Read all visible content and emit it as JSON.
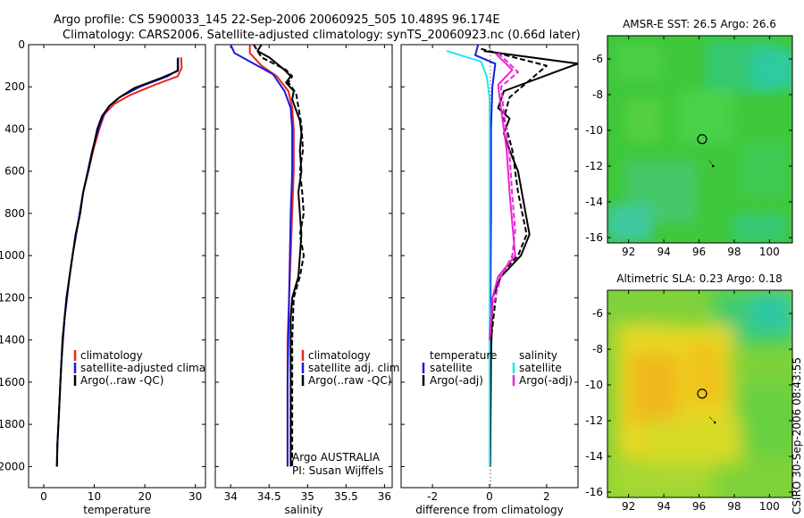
{
  "header": {
    "line1": "Argo profile: CS 5900033_145 22-Sep-2006 20060925_505 10.489S 96.174E",
    "line2": "Climatology: CARS2006. Satellite-adjusted climatology: synTS_20060923.nc (0.66d later)"
  },
  "credit": "CSIRO 30-Sep-2006 08:43:55",
  "colors": {
    "red": "#e8261e",
    "blue": "#1a1ae0",
    "black": "#000000",
    "cyan": "#22e6ee",
    "magenta": "#ee22d8"
  },
  "chart_data": [
    {
      "type": "line",
      "title": "",
      "xlabel": "temperature",
      "ylabel": "",
      "xlim": [
        -3,
        32
      ],
      "ylim": [
        0,
        2100
      ],
      "y_reversed": true,
      "x_ticks": [
        0,
        10,
        20,
        30
      ],
      "y_ticks": [
        0,
        200,
        400,
        600,
        800,
        1000,
        1200,
        1400,
        1600,
        1800,
        2000
      ],
      "legend": [
        "climatology",
        "satellite-adjusted climatology",
        "Argo(..raw -QC)"
      ],
      "series": [
        {
          "name": "climatology",
          "color": "red",
          "dash": false,
          "points": [
            [
              27.2,
              60
            ],
            [
              27.3,
              110
            ],
            [
              26.5,
              150
            ],
            [
              22,
              190
            ],
            [
              17,
              240
            ],
            [
              14,
              280
            ],
            [
              12,
              330
            ],
            [
              11,
              400
            ],
            [
              9.8,
              500
            ],
            [
              8.8,
              600
            ],
            [
              7.8,
              700
            ],
            [
              7.2,
              800
            ],
            [
              6.4,
              900
            ],
            [
              5.7,
              1000
            ],
            [
              5.1,
              1100
            ],
            [
              4.6,
              1200
            ],
            [
              4.1,
              1300
            ],
            [
              3.8,
              1400
            ],
            [
              3.5,
              1500
            ],
            [
              3.3,
              1600
            ],
            [
              3.1,
              1700
            ],
            [
              2.9,
              1800
            ],
            [
              2.7,
              1900
            ],
            [
              2.6,
              2000
            ]
          ]
        },
        {
          "name": "satellite-adjusted climatology",
          "color": "blue",
          "dash": false,
          "points": [
            [
              26.6,
              60
            ],
            [
              26.6,
              120
            ],
            [
              24.5,
              150
            ],
            [
              19,
              200
            ],
            [
              15,
              250
            ],
            [
              13,
              290
            ],
            [
              11.7,
              340
            ],
            [
              10.8,
              400
            ],
            [
              9.6,
              500
            ],
            [
              8.7,
              600
            ],
            [
              7.8,
              700
            ],
            [
              7.1,
              800
            ],
            [
              6.4,
              900
            ],
            [
              5.7,
              1000
            ],
            [
              5.1,
              1100
            ],
            [
              4.6,
              1200
            ],
            [
              4.1,
              1300
            ],
            [
              3.8,
              1400
            ],
            [
              3.5,
              1500
            ],
            [
              3.3,
              1600
            ],
            [
              3.1,
              1700
            ],
            [
              2.9,
              1800
            ],
            [
              2.7,
              1900
            ],
            [
              2.6,
              2000
            ]
          ]
        },
        {
          "name": "Argo(..raw -QC)",
          "color": "black",
          "dash": false,
          "points": [
            [
              26.5,
              65
            ],
            [
              26.5,
              125
            ],
            [
              23,
              160
            ],
            [
              18,
              205
            ],
            [
              15,
              250
            ],
            [
              13,
              290
            ],
            [
              11.5,
              340
            ],
            [
              10.6,
              400
            ],
            [
              9.7,
              500
            ],
            [
              8.8,
              600
            ],
            [
              7.8,
              700
            ],
            [
              7.2,
              800
            ],
            [
              6.3,
              900
            ],
            [
              5.7,
              1000
            ],
            [
              5.1,
              1100
            ],
            [
              4.5,
              1200
            ],
            [
              4.1,
              1300
            ],
            [
              3.7,
              1400
            ],
            [
              3.5,
              1500
            ],
            [
              3.3,
              1600
            ],
            [
              3.1,
              1700
            ],
            [
              2.9,
              1800
            ],
            [
              2.7,
              1900
            ],
            [
              2.6,
              2000
            ]
          ]
        }
      ]
    },
    {
      "type": "line",
      "title": "",
      "xlabel": "salinity",
      "ylabel": "",
      "xlim": [
        33.8,
        36.1
      ],
      "ylim": [
        0,
        2100
      ],
      "y_reversed": true,
      "x_ticks": [
        34,
        34.5,
        35,
        35.5,
        36
      ],
      "legend": [
        "climatology",
        "satellite adj. clim.",
        "Argo(..raw -QC)"
      ],
      "annotations": [
        "Argo AUSTRALIA",
        "PI: Susan Wijffels"
      ],
      "series": [
        {
          "name": "climatology",
          "color": "red",
          "dash": false,
          "points": [
            [
              34.25,
              0
            ],
            [
              34.25,
              40
            ],
            [
              34.4,
              100
            ],
            [
              34.6,
              150
            ],
            [
              34.75,
              220
            ],
            [
              34.8,
              300
            ],
            [
              34.82,
              400
            ],
            [
              34.82,
              600
            ],
            [
              34.8,
              800
            ],
            [
              34.78,
              1000
            ],
            [
              34.76,
              1200
            ],
            [
              34.74,
              1400
            ],
            [
              34.74,
              1600
            ],
            [
              34.74,
              1800
            ],
            [
              34.74,
              2000
            ]
          ]
        },
        {
          "name": "satellite adj. clim.",
          "color": "blue",
          "dash": false,
          "points": [
            [
              34.0,
              0
            ],
            [
              34.05,
              40
            ],
            [
              34.3,
              90
            ],
            [
              34.55,
              140
            ],
            [
              34.7,
              220
            ],
            [
              34.78,
              300
            ],
            [
              34.8,
              400
            ],
            [
              34.8,
              600
            ],
            [
              34.78,
              800
            ],
            [
              34.77,
              1000
            ],
            [
              34.76,
              1200
            ],
            [
              34.75,
              1400
            ],
            [
              34.74,
              1600
            ],
            [
              34.74,
              1800
            ],
            [
              34.74,
              2000
            ]
          ]
        },
        {
          "name": "Argo(..raw -QC)",
          "color": "black",
          "dash": false,
          "points": [
            [
              34.4,
              0
            ],
            [
              34.35,
              30
            ],
            [
              34.5,
              60
            ],
            [
              34.7,
              120
            ],
            [
              34.78,
              150
            ],
            [
              34.72,
              180
            ],
            [
              34.82,
              220
            ],
            [
              34.8,
              260
            ],
            [
              34.9,
              360
            ],
            [
              34.92,
              420
            ],
            [
              34.9,
              500
            ],
            [
              34.92,
              600
            ],
            [
              34.88,
              700
            ],
            [
              34.9,
              800
            ],
            [
              34.92,
              900
            ],
            [
              34.9,
              1000
            ],
            [
              34.88,
              1100
            ],
            [
              34.8,
              1200
            ],
            [
              34.78,
              1300
            ],
            [
              34.78,
              1500
            ],
            [
              34.78,
              1700
            ],
            [
              34.78,
              1900
            ],
            [
              34.78,
              2000
            ]
          ]
        },
        {
          "name": "Argo(..raw -QC) dashed",
          "color": "black",
          "dash": true,
          "points": [
            [
              34.3,
              0
            ],
            [
              34.4,
              60
            ],
            [
              34.72,
              120
            ],
            [
              34.8,
              150
            ],
            [
              34.75,
              180
            ],
            [
              34.85,
              230
            ],
            [
              34.92,
              380
            ],
            [
              34.94,
              500
            ],
            [
              34.9,
              600
            ],
            [
              34.93,
              700
            ],
            [
              34.95,
              800
            ],
            [
              34.9,
              900
            ],
            [
              34.95,
              1000
            ],
            [
              34.9,
              1100
            ],
            [
              34.82,
              1200
            ],
            [
              34.8,
              1400
            ],
            [
              34.8,
              1700
            ],
            [
              34.8,
              2000
            ]
          ]
        }
      ]
    },
    {
      "type": "line",
      "title": "",
      "xlabel": "difference from climatology",
      "ylabel": "",
      "xlim": [
        -3.1,
        3.1
      ],
      "ylim": [
        0,
        2100
      ],
      "y_reversed": true,
      "x_ticks": [
        -2,
        0,
        2
      ],
      "legend": {
        "temperature": [
          "satellite",
          "Argo(-adj)"
        ],
        "salinity": [
          "satellite",
          "Argo(-adj)"
        ]
      },
      "series": [
        {
          "name": "temperature satellite",
          "color": "blue",
          "dash": false,
          "points": [
            [
              -0.4,
              0
            ],
            [
              -0.5,
              50
            ],
            [
              0.2,
              90
            ],
            [
              0.1,
              200
            ],
            [
              0.05,
              400
            ],
            [
              0.05,
              800
            ],
            [
              0.03,
              1200
            ],
            [
              0.02,
              1600
            ],
            [
              0.02,
              2000
            ]
          ]
        },
        {
          "name": "temperature Argo(-adj)",
          "color": "black",
          "dash": false,
          "points": [
            [
              -0.2,
              30
            ],
            [
              3.1,
              90
            ],
            [
              2.5,
              120
            ],
            [
              0.5,
              220
            ],
            [
              0.3,
              300
            ],
            [
              0.7,
              350
            ],
            [
              0.5,
              420
            ],
            [
              0.7,
              500
            ],
            [
              1.0,
              600
            ],
            [
              1.4,
              900
            ],
            [
              1.1,
              1000
            ],
            [
              0.4,
              1100
            ],
            [
              0.1,
              1200
            ],
            [
              0.05,
              1500
            ],
            [
              0.02,
              2000
            ]
          ]
        },
        {
          "name": "temperature Argo(-adj) dashed",
          "color": "black",
          "dash": true,
          "points": [
            [
              -0.3,
              20
            ],
            [
              2.0,
              100
            ],
            [
              0.7,
              250
            ],
            [
              0.5,
              350
            ],
            [
              0.8,
              500
            ],
            [
              1.0,
              700
            ],
            [
              1.3,
              900
            ],
            [
              1.0,
              1000
            ],
            [
              0.3,
              1100
            ],
            [
              0.05,
              1400
            ],
            [
              0.02,
              2000
            ]
          ]
        },
        {
          "name": "salinity satellite",
          "color": "cyan",
          "dash": false,
          "points": [
            [
              -1.5,
              30
            ],
            [
              -0.3,
              80
            ],
            [
              -0.1,
              150
            ],
            [
              0,
              250
            ],
            [
              0,
              600
            ],
            [
              0,
              1200
            ],
            [
              0,
              2000
            ]
          ]
        },
        {
          "name": "salinity Argo(-adj)",
          "color": "magenta",
          "dash": false,
          "points": [
            [
              0.2,
              40
            ],
            [
              0.8,
              120
            ],
            [
              0.3,
              190
            ],
            [
              0.4,
              300
            ],
            [
              0.6,
              500
            ],
            [
              0.7,
              700
            ],
            [
              0.8,
              850
            ],
            [
              0.9,
              1000
            ],
            [
              0.3,
              1100
            ],
            [
              0.1,
              1200
            ],
            [
              0,
              1400
            ]
          ]
        },
        {
          "name": "salinity Argo(-adj) dashed",
          "color": "magenta",
          "dash": true,
          "points": [
            [
              0.3,
              40
            ],
            [
              1.0,
              130
            ],
            [
              0.4,
              200
            ],
            [
              0.5,
              320
            ],
            [
              0.7,
              520
            ],
            [
              0.8,
              720
            ],
            [
              0.9,
              880
            ],
            [
              0.8,
              1000
            ],
            [
              0.4,
              1100
            ],
            [
              0.1,
              1250
            ],
            [
              0,
              1400
            ]
          ]
        }
      ]
    },
    {
      "type": "heatmap",
      "title": "AMSR-E SST: 26.5 Argo: 26.6",
      "xlim": [
        90.8,
        101.3
      ],
      "ylim": [
        -16.3,
        -4.7
      ],
      "x_ticks": [
        92,
        94,
        96,
        98,
        100
      ],
      "y_ticks": [
        -6,
        -8,
        -10,
        -12,
        -14,
        -16
      ],
      "marker": {
        "lon": 96.174,
        "lat": -10.489
      },
      "track": [
        [
          96.6,
          -11.7
        ],
        [
          96.8,
          -12.0
        ]
      ]
    },
    {
      "type": "heatmap",
      "title": "Altimetric SLA: 0.23 Argo: 0.18",
      "xlim": [
        90.8,
        101.3
      ],
      "ylim": [
        -16.3,
        -4.7
      ],
      "x_ticks": [
        92,
        94,
        96,
        98,
        100
      ],
      "y_ticks": [
        -6,
        -8,
        -10,
        -12,
        -14,
        -16
      ],
      "marker": {
        "lon": 96.174,
        "lat": -10.489
      },
      "track": [
        [
          96.6,
          -11.8
        ],
        [
          96.9,
          -12.1
        ]
      ]
    }
  ]
}
